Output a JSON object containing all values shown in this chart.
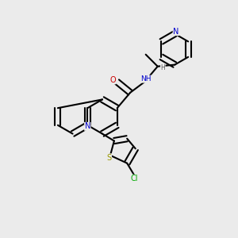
{
  "background_color": "#ebebeb",
  "bond_color": "#000000",
  "bond_width": 1.5,
  "atom_colors": {
    "N": "#0000cc",
    "O": "#cc0000",
    "S": "#999900",
    "Cl": "#00aa00",
    "C": "#000000",
    "H": "#555555"
  },
  "figsize": [
    3.0,
    3.0
  ],
  "dpi": 100
}
